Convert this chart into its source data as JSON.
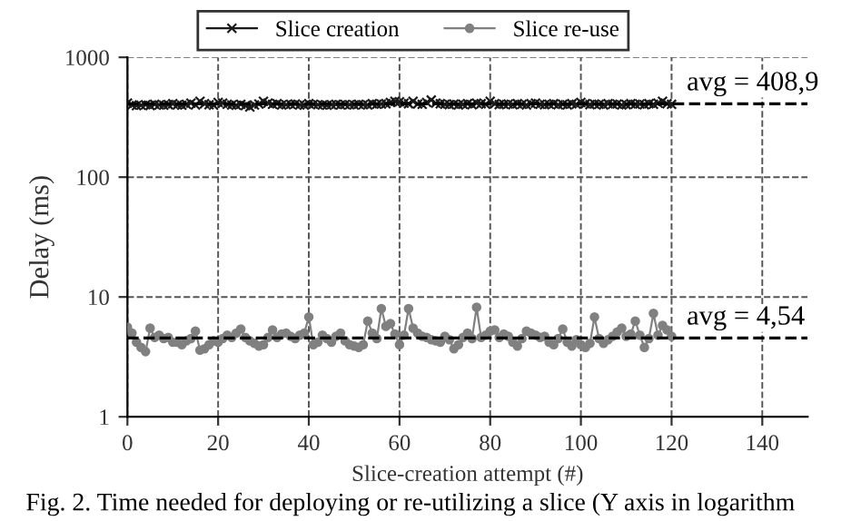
{
  "chart_data": {
    "type": "line",
    "xlabel": "Slice-creation attempt (#)",
    "ylabel": "Delay (ms)",
    "x": [
      0,
      1,
      2,
      3,
      4,
      5,
      6,
      7,
      8,
      9,
      10,
      11,
      12,
      13,
      14,
      15,
      16,
      17,
      18,
      19,
      20,
      21,
      22,
      23,
      24,
      25,
      26,
      27,
      28,
      29,
      30,
      31,
      32,
      33,
      34,
      35,
      36,
      37,
      38,
      39,
      40,
      41,
      42,
      43,
      44,
      45,
      46,
      47,
      48,
      49,
      50,
      51,
      52,
      53,
      54,
      55,
      56,
      57,
      58,
      59,
      60,
      61,
      62,
      63,
      64,
      65,
      66,
      67,
      68,
      69,
      70,
      71,
      72,
      73,
      74,
      75,
      76,
      77,
      78,
      79,
      80,
      81,
      82,
      83,
      84,
      85,
      86,
      87,
      88,
      89,
      90,
      91,
      92,
      93,
      94,
      95,
      96,
      97,
      98,
      99,
      100,
      101,
      102,
      103,
      104,
      105,
      106,
      107,
      108,
      109,
      110,
      111,
      112,
      113,
      114,
      115,
      116,
      117,
      118,
      119,
      120
    ],
    "series": [
      {
        "name": "Slice creation",
        "color": "#1a1a1a",
        "marker": "cross",
        "values": [
          415,
          400,
          395,
          398,
          402,
          396,
          405,
          400,
          398,
          403,
          410,
          400,
          398,
          405,
          415,
          400,
          430,
          410,
          402,
          398,
          420,
          415,
          405,
          400,
          398,
          405,
          395,
          385,
          400,
          408,
          430,
          415,
          405,
          410,
          400,
          402,
          405,
          408,
          400,
          398,
          410,
          405,
          402,
          400,
          398,
          402,
          405,
          400,
          404,
          402,
          400,
          405,
          402,
          400,
          410,
          405,
          408,
          410,
          420,
          430,
          425,
          415,
          410,
          430,
          408,
          405,
          420,
          440,
          415,
          410,
          405,
          403,
          408,
          400,
          405,
          410,
          402,
          415,
          410,
          405,
          430,
          410,
          403,
          405,
          408,
          402,
          410,
          405,
          400,
          410,
          415,
          405,
          402,
          405,
          410,
          402,
          405,
          400,
          410,
          405,
          420,
          410,
          403,
          408,
          405,
          400,
          410,
          405,
          408,
          400,
          403,
          410,
          405,
          408,
          402,
          410,
          405,
          415,
          430,
          410,
          405
        ]
      },
      {
        "name": "Slice re-use",
        "color": "#808080",
        "marker": "circle",
        "values": [
          5.6,
          5.0,
          4.2,
          3.8,
          3.5,
          5.5,
          4.6,
          4.8,
          4.5,
          4.6,
          4.2,
          4.2,
          4.0,
          4.3,
          4.5,
          5.2,
          3.6,
          3.7,
          4.0,
          4.3,
          4.2,
          4.5,
          4.8,
          4.6,
          5.0,
          5.4,
          4.6,
          4.3,
          4.1,
          3.9,
          4.0,
          4.6,
          5.3,
          4.6,
          4.9,
          5.0,
          4.7,
          4.5,
          4.8,
          5.0,
          6.8,
          4.0,
          4.2,
          4.8,
          4.5,
          4.2,
          4.7,
          5.0,
          4.3,
          4.0,
          3.9,
          3.8,
          4.0,
          6.3,
          5.0,
          4.5,
          8.0,
          5.7,
          6.0,
          4.9,
          4.0,
          4.8,
          8.0,
          5.5,
          5.0,
          4.7,
          4.6,
          4.4,
          4.3,
          4.2,
          4.7,
          4.4,
          3.7,
          4.0,
          4.6,
          5.0,
          4.5,
          8.2,
          4.6,
          4.8,
          5.2,
          5.3,
          4.6,
          4.9,
          4.7,
          4.2,
          3.9,
          4.5,
          5.2,
          5.0,
          4.8,
          4.6,
          4.7,
          4.2,
          4.0,
          4.5,
          5.4,
          4.2,
          3.9,
          4.4,
          4.0,
          3.8,
          4.1,
          6.8,
          4.5,
          4.1,
          4.4,
          4.7,
          5.1,
          5.5,
          4.7,
          4.9,
          6.3,
          4.8,
          3.8,
          4.5,
          7.3,
          4.8,
          5.8,
          5.3,
          4.7
        ]
      }
    ],
    "ref_lines": [
      {
        "axis": "y",
        "value": 408.9,
        "label": "avg = 408,9",
        "color": "#000000",
        "line_style": "dashed"
      },
      {
        "axis": "y",
        "value": 4.54,
        "label": "avg = 4,54",
        "color": "#000000",
        "line_style": "dashed"
      }
    ],
    "log": "y",
    "xlim": [
      0,
      150
    ],
    "xticks": [
      0,
      20,
      40,
      60,
      80,
      100,
      120,
      140
    ],
    "ylim": [
      1,
      1000
    ],
    "yticks": [
      1,
      10,
      100,
      1000
    ],
    "grid": true,
    "line_style": "solid",
    "legend": "top",
    "annotations": [
      "Fig. 2. Time needed for deploying or re-utilizing a slice (Y axis in logarithm"
    ]
  }
}
